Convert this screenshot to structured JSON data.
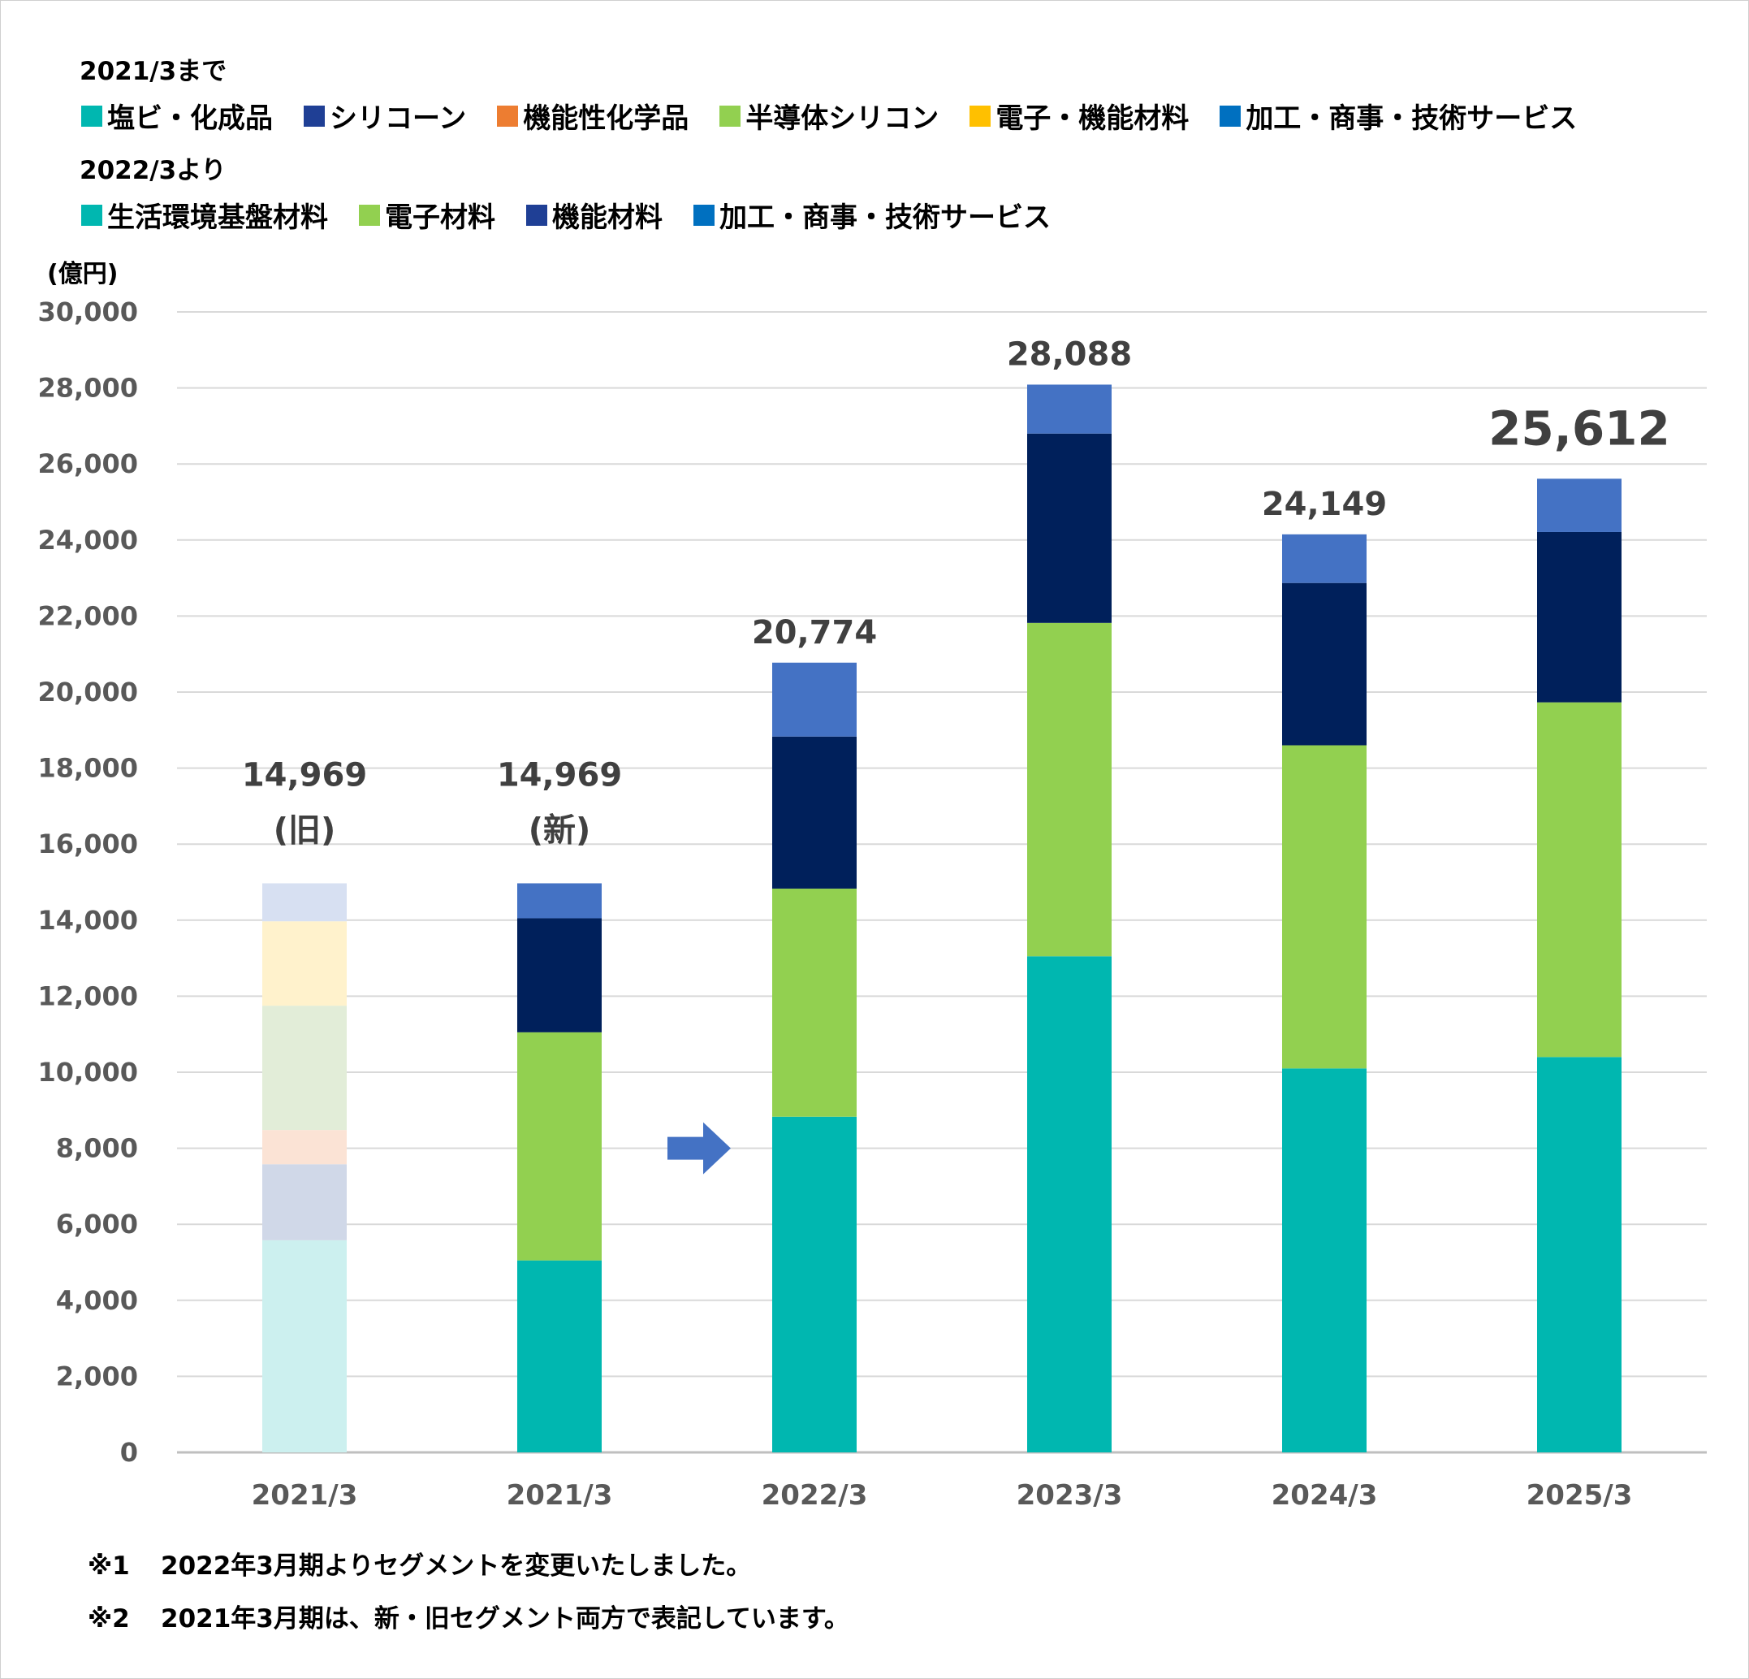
{
  "legend_old": {
    "title": "2021/3まで",
    "items": [
      {
        "label": "塩ビ・化成品",
        "color": "#00B7B0"
      },
      {
        "label": "シリコーン",
        "color": "#1F3F95"
      },
      {
        "label": "機能性化学品",
        "color": "#ED7D31"
      },
      {
        "label": "半導体シリコン",
        "color": "#92D050"
      },
      {
        "label": "電子・機能材料",
        "color": "#FFC000"
      },
      {
        "label": "加工・商事・技術サービス",
        "color": "#0070C0"
      }
    ]
  },
  "legend_new": {
    "title": "2022/3より",
    "items": [
      {
        "label": "生活環境基盤材料",
        "color": "#00B7B0"
      },
      {
        "label": "電子材料",
        "color": "#92D050"
      },
      {
        "label": "機能材料",
        "color": "#1F3F95"
      },
      {
        "label": "加工・商事・技術サービス",
        "color": "#0070C0"
      }
    ]
  },
  "unit_label": "(億円)",
  "chart_data": {
    "type": "bar",
    "stacked": true,
    "categories": [
      "2021/3",
      "2021/3",
      "2022/3",
      "2023/3",
      "2024/3",
      "2025/3"
    ],
    "ylim": [
      0,
      30000
    ],
    "yticks": [
      0,
      2000,
      4000,
      6000,
      8000,
      10000,
      12000,
      14000,
      16000,
      18000,
      20000,
      22000,
      24000,
      26000,
      28000,
      30000
    ],
    "ytick_labels": [
      "0",
      "2,000",
      "4,000",
      "6,000",
      "8,000",
      "10,000",
      "12,000",
      "14,000",
      "16,000",
      "18,000",
      "20,000",
      "22,000",
      "24,000",
      "26,000",
      "28,000",
      "30,000"
    ],
    "grid": true,
    "old_segment_bar": {
      "category_index": 0,
      "segments": [
        {
          "name": "塩ビ・化成品",
          "value": 5580,
          "color": "#CCF0EF"
        },
        {
          "name": "シリコーン",
          "value": 2000,
          "color": "#D0D8E8"
        },
        {
          "name": "機能性化学品",
          "value": 900,
          "color": "#FBE3D5"
        },
        {
          "name": "半導体シリコン",
          "value": 3270,
          "color": "#E2EDD8"
        },
        {
          "name": "電子・機能材料",
          "value": 2220,
          "color": "#FFF2CC"
        },
        {
          "name": "加工・商事・技術サービス",
          "value": 999,
          "color": "#D7E0F2"
        }
      ]
    },
    "series": [
      {
        "name": "生活環境基盤材料",
        "color": "#00B7B0",
        "values": [
          null,
          5050,
          8830,
          13050,
          10100,
          10400
        ]
      },
      {
        "name": "電子材料",
        "color": "#92D050",
        "values": [
          null,
          6000,
          6000,
          8770,
          8500,
          9330
        ]
      },
      {
        "name": "機能材料",
        "color": "#00205B",
        "values": [
          null,
          3000,
          4000,
          4980,
          4270,
          4480
        ]
      },
      {
        "name": "加工・商事・技術サービス",
        "color": "#4472C4",
        "values": [
          null,
          919,
          1944,
          1288,
          1279,
          1402
        ]
      }
    ],
    "totals": [
      {
        "value": "14,969",
        "sub": "(旧)"
      },
      {
        "value": "14,969",
        "sub": "(新)"
      },
      {
        "value": "20,774",
        "sub": ""
      },
      {
        "value": "28,088",
        "sub": ""
      },
      {
        "value": "24,149",
        "sub": ""
      },
      {
        "value": "25,612",
        "sub": ""
      }
    ],
    "arrow_color": "#4472C4"
  },
  "notes": [
    {
      "mark": "※1",
      "text": "2022年3月期よりセグメントを変更いたしました。"
    },
    {
      "mark": "※2",
      "text": "2021年3月期は、新・旧セグメント両方で表記しています。"
    }
  ]
}
